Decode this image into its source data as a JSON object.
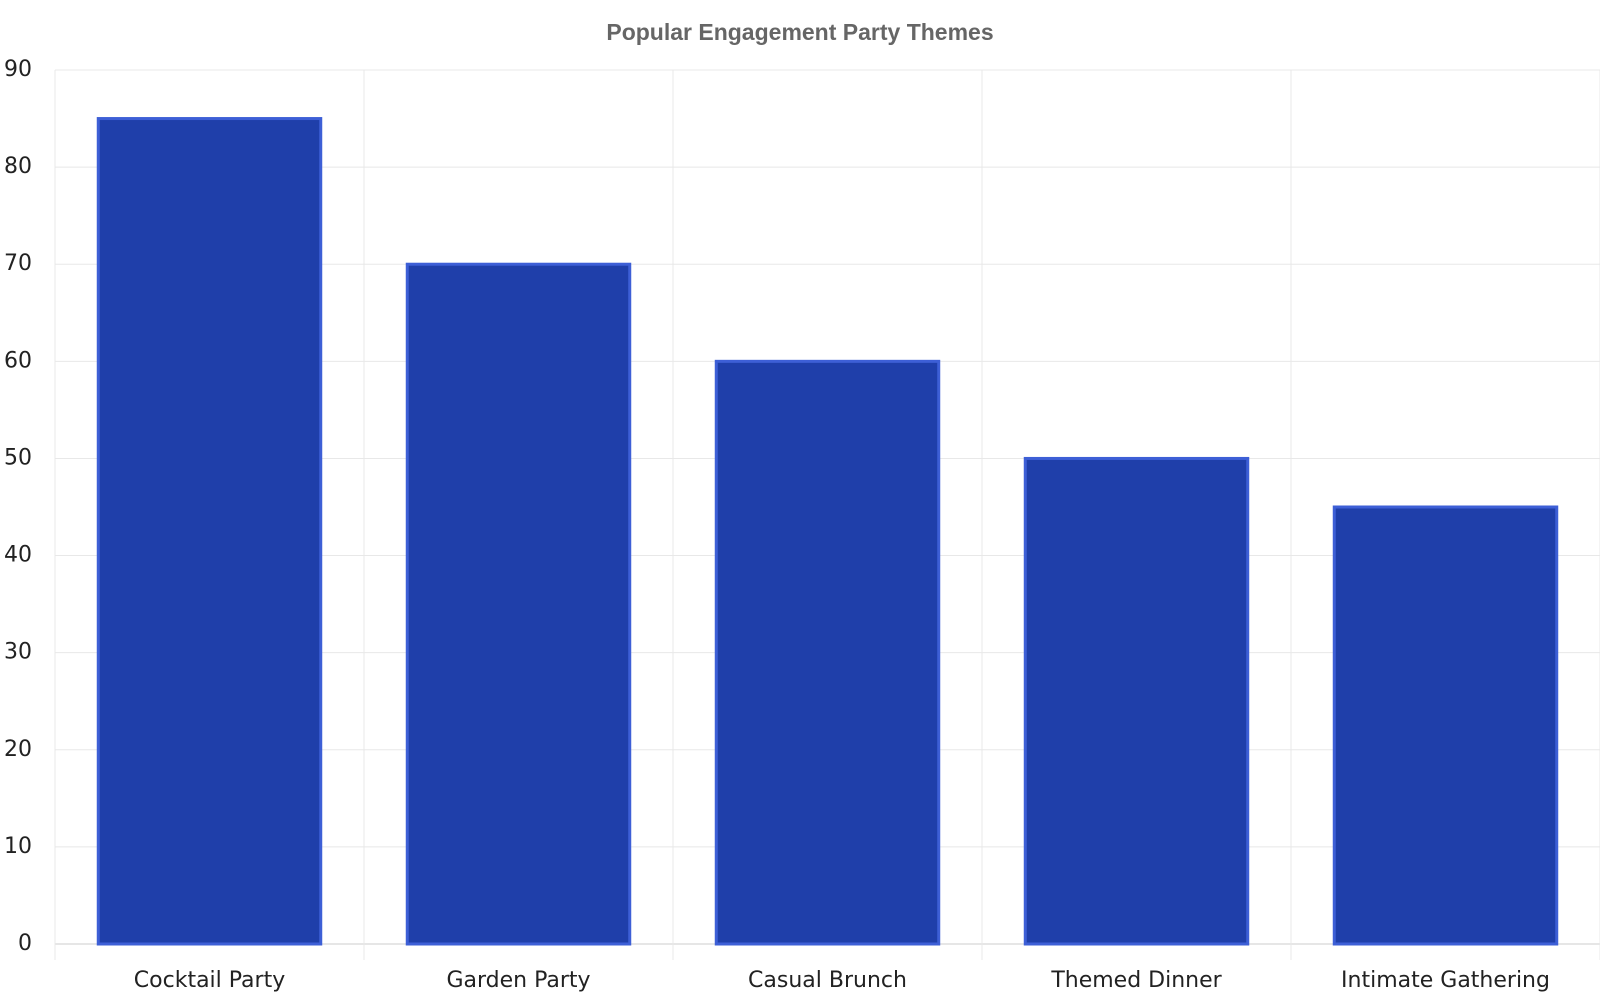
{
  "chart_data": {
    "type": "bar",
    "title": "Popular Engagement Party Themes",
    "categories": [
      "Cocktail Party",
      "Garden Party",
      "Casual Brunch",
      "Themed Dinner",
      "Intimate Gathering"
    ],
    "values": [
      85,
      70,
      60,
      50,
      45
    ],
    "color": "#1f3faa",
    "ylim": [
      0,
      90
    ],
    "yticks": [
      0,
      10,
      20,
      30,
      40,
      50,
      60,
      70,
      80,
      90
    ],
    "grid": true
  }
}
